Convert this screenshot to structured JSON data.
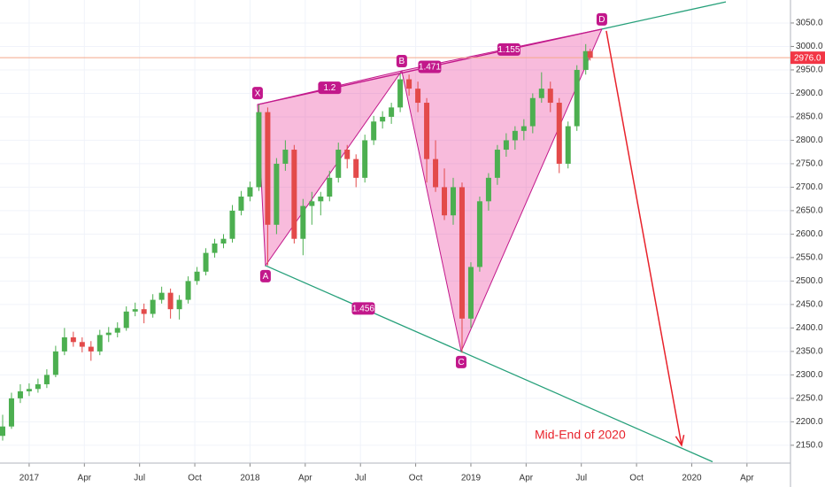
{
  "chart_data": {
    "type": "candlestick",
    "annotation": "Mid-End of 2020",
    "xlim": [
      2016.868,
      2020.447
    ],
    "ylim": [
      2112,
      3099
    ],
    "xticks": [
      {
        "value": 2017,
        "label": "2017"
      },
      {
        "value": 2017.25,
        "label": "Apr"
      },
      {
        "value": 2017.5,
        "label": "Jul"
      },
      {
        "value": 2017.75,
        "label": "Oct"
      },
      {
        "value": 2018,
        "label": "2018"
      },
      {
        "value": 2018.25,
        "label": "Apr"
      },
      {
        "value": 2018.5,
        "label": "Jul"
      },
      {
        "value": 2018.75,
        "label": "Oct"
      },
      {
        "value": 2019,
        "label": "2019"
      },
      {
        "value": 2019.25,
        "label": "Apr"
      },
      {
        "value": 2019.5,
        "label": "Jul"
      },
      {
        "value": 2019.75,
        "label": "Oct"
      },
      {
        "value": 2020,
        "label": "2020"
      },
      {
        "value": 2020.25,
        "label": "Apr"
      }
    ],
    "yticks": [
      {
        "value": 2150,
        "label": "2150.0"
      },
      {
        "value": 2200,
        "label": "2200.0"
      },
      {
        "value": 2250,
        "label": "2250.0"
      },
      {
        "value": 2300,
        "label": "2300.0"
      },
      {
        "value": 2350,
        "label": "2350.0"
      },
      {
        "value": 2400,
        "label": "2400.0"
      },
      {
        "value": 2450,
        "label": "2450.0"
      },
      {
        "value": 2500,
        "label": "2500.0"
      },
      {
        "value": 2550,
        "label": "2550.0"
      },
      {
        "value": 2600,
        "label": "2600.0"
      },
      {
        "value": 2650,
        "label": "2650.0"
      },
      {
        "value": 2700,
        "label": "2700.0"
      },
      {
        "value": 2750,
        "label": "2750.0"
      },
      {
        "value": 2800,
        "label": "2800.0"
      },
      {
        "value": 2850,
        "label": "2850.0"
      },
      {
        "value": 2900,
        "label": "2900.0"
      },
      {
        "value": 2950,
        "label": "2950.0"
      },
      {
        "value": 3000,
        "label": "3000.0"
      },
      {
        "value": 3050,
        "label": "3050.0"
      }
    ],
    "grid": true,
    "up_color": "#4caf50",
    "down_color": "#e34a4a",
    "last_price": {
      "value": 2976,
      "label": "2976.0",
      "color": "#f23645"
    },
    "x": [
      2016.88,
      2016.92,
      2016.96,
      2017.0,
      2017.04,
      2017.08,
      2017.12,
      2017.16,
      2017.2,
      2017.24,
      2017.28,
      2017.32,
      2017.36,
      2017.4,
      2017.44,
      2017.48,
      2017.52,
      2017.56,
      2017.6,
      2017.64,
      2017.68,
      2017.72,
      2017.76,
      2017.8,
      2017.84,
      2017.88,
      2017.92,
      2017.96,
      2018.0,
      2018.04,
      2018.08,
      2018.12,
      2018.16,
      2018.2,
      2018.24,
      2018.28,
      2018.32,
      2018.36,
      2018.4,
      2018.44,
      2018.48,
      2018.52,
      2018.56,
      2018.6,
      2018.64,
      2018.68,
      2018.72,
      2018.76,
      2018.8,
      2018.84,
      2018.88,
      2018.92,
      2018.96,
      2019.0,
      2019.04,
      2019.08,
      2019.12,
      2019.16,
      2019.2,
      2019.24,
      2019.28,
      2019.32,
      2019.36,
      2019.4,
      2019.44,
      2019.48,
      2019.52,
      2019.54
    ],
    "open": [
      2170,
      2190,
      2250,
      2265,
      2270,
      2280,
      2300,
      2350,
      2380,
      2370,
      2360,
      2350,
      2385,
      2390,
      2400,
      2435,
      2440,
      2430,
      2460,
      2475,
      2440,
      2460,
      2500,
      2520,
      2560,
      2580,
      2590,
      2650,
      2680,
      2700,
      2860,
      2620,
      2750,
      2780,
      2590,
      2660,
      2670,
      2680,
      2720,
      2780,
      2760,
      2720,
      2800,
      2840,
      2850,
      2870,
      2930,
      2910,
      2880,
      2760,
      2700,
      2640,
      2700,
      2420,
      2530,
      2670,
      2720,
      2780,
      2800,
      2820,
      2830,
      2890,
      2910,
      2880,
      2750,
      2830,
      2950,
      2990
    ],
    "high": [
      2215,
      2262,
      2280,
      2282,
      2292,
      2312,
      2362,
      2400,
      2392,
      2380,
      2372,
      2396,
      2402,
      2412,
      2446,
      2454,
      2452,
      2472,
      2488,
      2484,
      2470,
      2510,
      2530,
      2570,
      2590,
      2600,
      2662,
      2692,
      2712,
      2876,
      2870,
      2762,
      2800,
      2790,
      2675,
      2690,
      2690,
      2735,
      2795,
      2790,
      2770,
      2812,
      2852,
      2862,
      2880,
      2942,
      2940,
      2925,
      2890,
      2800,
      2740,
      2720,
      2710,
      2540,
      2680,
      2730,
      2790,
      2815,
      2830,
      2845,
      2900,
      2945,
      2925,
      2890,
      2840,
      2960,
      3005,
      2995
    ],
    "low": [
      2160,
      2185,
      2240,
      2255,
      2262,
      2272,
      2295,
      2342,
      2360,
      2348,
      2330,
      2342,
      2370,
      2380,
      2394,
      2425,
      2410,
      2422,
      2452,
      2420,
      2418,
      2452,
      2492,
      2512,
      2550,
      2570,
      2582,
      2640,
      2670,
      2692,
      2533,
      2600,
      2735,
      2580,
      2555,
      2620,
      2640,
      2670,
      2710,
      2740,
      2700,
      2710,
      2790,
      2825,
      2835,
      2860,
      2895,
      2860,
      2710,
      2690,
      2630,
      2620,
      2347,
      2400,
      2520,
      2650,
      2705,
      2765,
      2780,
      2800,
      2815,
      2880,
      2860,
      2730,
      2740,
      2820,
      2940,
      2970
    ],
    "close": [
      2190,
      2250,
      2265,
      2270,
      2280,
      2300,
      2350,
      2380,
      2370,
      2360,
      2350,
      2385,
      2390,
      2400,
      2435,
      2440,
      2430,
      2460,
      2475,
      2440,
      2460,
      2500,
      2520,
      2560,
      2580,
      2590,
      2650,
      2680,
      2700,
      2860,
      2620,
      2750,
      2780,
      2590,
      2660,
      2670,
      2680,
      2720,
      2780,
      2760,
      2720,
      2800,
      2840,
      2850,
      2870,
      2930,
      2910,
      2880,
      2760,
      2700,
      2640,
      2700,
      2420,
      2530,
      2670,
      2720,
      2780,
      2800,
      2820,
      2830,
      2890,
      2910,
      2880,
      2750,
      2830,
      2950,
      2990,
      2976
    ],
    "pattern": {
      "color": "#c2188b",
      "line_color": "#26a07a",
      "points": [
        {
          "label": "X",
          "x": 2018.034,
          "y": 2876
        },
        {
          "label": "A",
          "x": 2018.07,
          "y": 2533
        },
        {
          "label": "B",
          "x": 2018.687,
          "y": 2948
        },
        {
          "label": "C",
          "x": 2018.956,
          "y": 2350
        },
        {
          "label": "D",
          "x": 2019.593,
          "y": 3037
        }
      ],
      "ratios": [
        "1.2",
        "1.456",
        "1.471",
        "1.155"
      ]
    },
    "projection": {
      "x": 2019.954,
      "y": 2150,
      "color": "#e8222b"
    }
  }
}
